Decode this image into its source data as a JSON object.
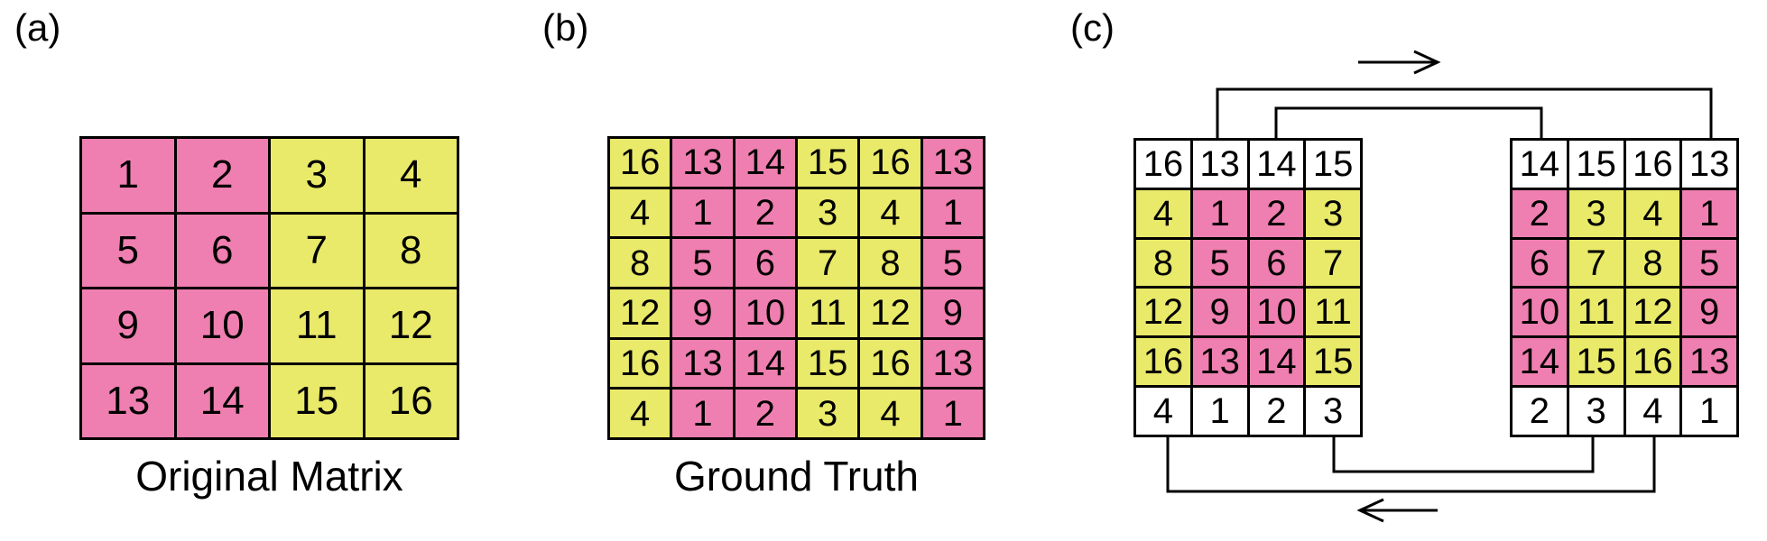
{
  "colors": {
    "pink": "#ef7fb0",
    "yellow": "#e9e96a",
    "white": "#ffffff",
    "border": "#000000"
  },
  "panels": {
    "a": {
      "label": "(a)",
      "caption": "Original Matrix",
      "cells": [
        [
          {
            "v": "1",
            "c": "pink"
          },
          {
            "v": "2",
            "c": "pink"
          },
          {
            "v": "3",
            "c": "yellow"
          },
          {
            "v": "4",
            "c": "yellow"
          }
        ],
        [
          {
            "v": "5",
            "c": "pink"
          },
          {
            "v": "6",
            "c": "pink"
          },
          {
            "v": "7",
            "c": "yellow"
          },
          {
            "v": "8",
            "c": "yellow"
          }
        ],
        [
          {
            "v": "9",
            "c": "pink"
          },
          {
            "v": "10",
            "c": "pink"
          },
          {
            "v": "11",
            "c": "yellow"
          },
          {
            "v": "12",
            "c": "yellow"
          }
        ],
        [
          {
            "v": "13",
            "c": "pink"
          },
          {
            "v": "14",
            "c": "pink"
          },
          {
            "v": "15",
            "c": "yellow"
          },
          {
            "v": "16",
            "c": "yellow"
          }
        ]
      ]
    },
    "b": {
      "label": "(b)",
      "caption": "Ground Truth",
      "cells": [
        [
          {
            "v": "16",
            "c": "yellow"
          },
          {
            "v": "13",
            "c": "pink"
          },
          {
            "v": "14",
            "c": "pink"
          },
          {
            "v": "15",
            "c": "yellow"
          },
          {
            "v": "16",
            "c": "yellow"
          },
          {
            "v": "13",
            "c": "pink"
          }
        ],
        [
          {
            "v": "4",
            "c": "yellow"
          },
          {
            "v": "1",
            "c": "pink"
          },
          {
            "v": "2",
            "c": "pink"
          },
          {
            "v": "3",
            "c": "yellow"
          },
          {
            "v": "4",
            "c": "yellow"
          },
          {
            "v": "1",
            "c": "pink"
          }
        ],
        [
          {
            "v": "8",
            "c": "yellow"
          },
          {
            "v": "5",
            "c": "pink"
          },
          {
            "v": "6",
            "c": "pink"
          },
          {
            "v": "7",
            "c": "yellow"
          },
          {
            "v": "8",
            "c": "yellow"
          },
          {
            "v": "5",
            "c": "pink"
          }
        ],
        [
          {
            "v": "12",
            "c": "yellow"
          },
          {
            "v": "9",
            "c": "pink"
          },
          {
            "v": "10",
            "c": "pink"
          },
          {
            "v": "11",
            "c": "yellow"
          },
          {
            "v": "12",
            "c": "yellow"
          },
          {
            "v": "9",
            "c": "pink"
          }
        ],
        [
          {
            "v": "16",
            "c": "yellow"
          },
          {
            "v": "13",
            "c": "pink"
          },
          {
            "v": "14",
            "c": "pink"
          },
          {
            "v": "15",
            "c": "yellow"
          },
          {
            "v": "16",
            "c": "yellow"
          },
          {
            "v": "13",
            "c": "pink"
          }
        ],
        [
          {
            "v": "4",
            "c": "yellow"
          },
          {
            "v": "1",
            "c": "pink"
          },
          {
            "v": "2",
            "c": "pink"
          },
          {
            "v": "3",
            "c": "yellow"
          },
          {
            "v": "4",
            "c": "yellow"
          },
          {
            "v": "1",
            "c": "pink"
          }
        ]
      ]
    },
    "c": {
      "label": "(c)",
      "left": [
        [
          {
            "v": "16",
            "c": "white"
          },
          {
            "v": "13",
            "c": "white"
          },
          {
            "v": "14",
            "c": "white"
          },
          {
            "v": "15",
            "c": "white"
          }
        ],
        [
          {
            "v": "4",
            "c": "yellow"
          },
          {
            "v": "1",
            "c": "pink"
          },
          {
            "v": "2",
            "c": "pink"
          },
          {
            "v": "3",
            "c": "yellow"
          }
        ],
        [
          {
            "v": "8",
            "c": "yellow"
          },
          {
            "v": "5",
            "c": "pink"
          },
          {
            "v": "6",
            "c": "pink"
          },
          {
            "v": "7",
            "c": "yellow"
          }
        ],
        [
          {
            "v": "12",
            "c": "yellow"
          },
          {
            "v": "9",
            "c": "pink"
          },
          {
            "v": "10",
            "c": "pink"
          },
          {
            "v": "11",
            "c": "yellow"
          }
        ],
        [
          {
            "v": "16",
            "c": "yellow"
          },
          {
            "v": "13",
            "c": "pink"
          },
          {
            "v": "14",
            "c": "pink"
          },
          {
            "v": "15",
            "c": "yellow"
          }
        ],
        [
          {
            "v": "4",
            "c": "white"
          },
          {
            "v": "1",
            "c": "white"
          },
          {
            "v": "2",
            "c": "white"
          },
          {
            "v": "3",
            "c": "white"
          }
        ]
      ],
      "right": [
        [
          {
            "v": "14",
            "c": "white"
          },
          {
            "v": "15",
            "c": "white"
          },
          {
            "v": "16",
            "c": "white"
          },
          {
            "v": "13",
            "c": "white"
          }
        ],
        [
          {
            "v": "2",
            "c": "pink"
          },
          {
            "v": "3",
            "c": "yellow"
          },
          {
            "v": "4",
            "c": "yellow"
          },
          {
            "v": "1",
            "c": "pink"
          }
        ],
        [
          {
            "v": "6",
            "c": "pink"
          },
          {
            "v": "7",
            "c": "yellow"
          },
          {
            "v": "8",
            "c": "yellow"
          },
          {
            "v": "5",
            "c": "pink"
          }
        ],
        [
          {
            "v": "10",
            "c": "pink"
          },
          {
            "v": "11",
            "c": "yellow"
          },
          {
            "v": "12",
            "c": "yellow"
          },
          {
            "v": "9",
            "c": "pink"
          }
        ],
        [
          {
            "v": "14",
            "c": "pink"
          },
          {
            "v": "15",
            "c": "yellow"
          },
          {
            "v": "16",
            "c": "yellow"
          },
          {
            "v": "13",
            "c": "pink"
          }
        ],
        [
          {
            "v": "2",
            "c": "white"
          },
          {
            "v": "3",
            "c": "white"
          },
          {
            "v": "4",
            "c": "white"
          },
          {
            "v": "1",
            "c": "white"
          }
        ]
      ],
      "arrows": [
        "right-arrow-icon",
        "left-arrow-icon"
      ]
    }
  }
}
